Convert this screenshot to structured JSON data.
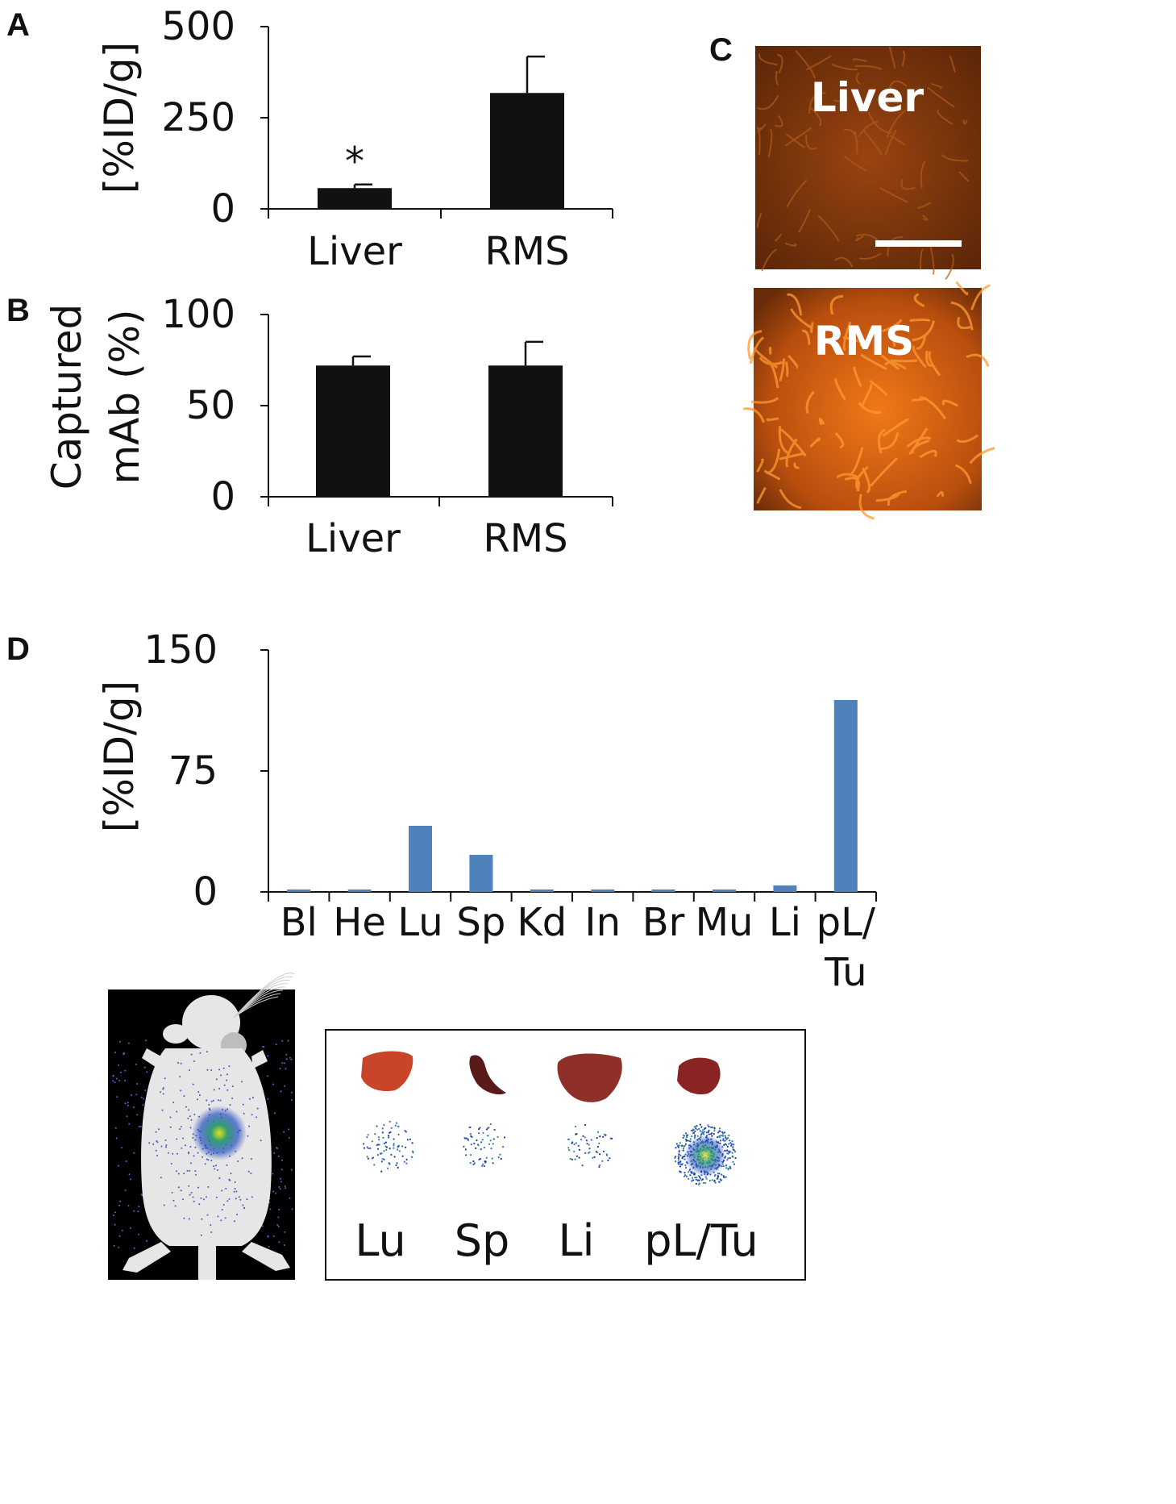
{
  "panels": {
    "a": {
      "letter": "A"
    },
    "b": {
      "letter": "B"
    },
    "c": {
      "letter": "C"
    },
    "d": {
      "letter": "D"
    }
  },
  "chart_data": [
    {
      "id": "A",
      "type": "bar",
      "categories": [
        "Liver",
        "RMS"
      ],
      "values": [
        57,
        318
      ],
      "errors": [
        10,
        100
      ],
      "annotations": [
        {
          "category": "Liver",
          "text": "*"
        }
      ],
      "ylabel": "[%ID/g]",
      "ylim": [
        0,
        500
      ],
      "yticks": [
        0,
        250,
        500
      ],
      "bar_color": "#111111",
      "grid": false
    },
    {
      "id": "B",
      "type": "bar",
      "categories": [
        "Liver",
        "RMS"
      ],
      "values": [
        72,
        72
      ],
      "errors": [
        5,
        13
      ],
      "ylabel_lines": [
        "Captured",
        "mAb (%)"
      ],
      "ylim": [
        0,
        100
      ],
      "yticks": [
        0,
        50,
        100
      ],
      "bar_color": "#111111",
      "grid": false
    },
    {
      "id": "D",
      "type": "bar",
      "categories": [
        "Bl",
        "He",
        "Lu",
        "Sp",
        "Kd",
        "In",
        "Br",
        "Mu",
        "Li",
        "pL/Tu"
      ],
      "values": [
        1.5,
        1.5,
        41,
        23,
        1.5,
        1.5,
        1.5,
        1.5,
        4,
        119
      ],
      "ylabel": "[%ID/g]",
      "ylim": [
        0,
        150
      ],
      "yticks": [
        0,
        75,
        150
      ],
      "bar_color": "#4f81bd",
      "grid": false
    }
  ],
  "micrographs": [
    {
      "label": "Liver",
      "tint": "#8a3a08"
    },
    {
      "label": "RMS",
      "tint": "#d96010"
    }
  ],
  "organs": {
    "labels": [
      "Lu",
      "Sp",
      "Li",
      "pL/Tu"
    ],
    "colors": [
      "#c8452a",
      "#5a1a1a",
      "#8e2f2a",
      "#8a2424"
    ]
  }
}
